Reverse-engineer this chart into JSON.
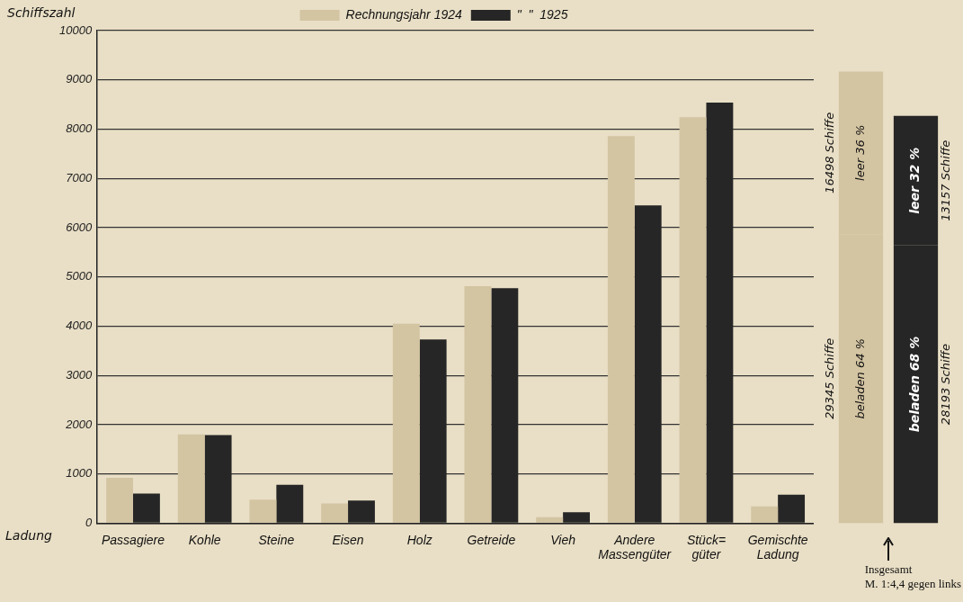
{
  "chart_data": [
    {
      "type": "bar",
      "ylabel": "Schiffszahl",
      "xlabel": "Ladung",
      "categories": [
        "Passagiere",
        "Kohle",
        "Steine",
        "Eisen",
        "Holz",
        "Getreide",
        "Vieh",
        "Andere Massengüter",
        "Stück= güter",
        "Gemischte Ladung"
      ],
      "series": [
        {
          "name": "Rechnungsjahr 1924",
          "color": "#d3c4a2",
          "values": [
            920,
            1800,
            480,
            400,
            4050,
            4810,
            120,
            7860,
            8240,
            340
          ]
        },
        {
          "name": "\"  \"  1925",
          "color": "#262626",
          "values": [
            600,
            1790,
            780,
            460,
            3730,
            4770,
            220,
            6450,
            8540,
            580
          ]
        }
      ],
      "ylim": [
        0,
        10000
      ],
      "yticks": [
        0,
        1000,
        2000,
        3000,
        4000,
        5000,
        6000,
        7000,
        8000,
        9000,
        10000
      ],
      "grid": "y",
      "legend": "top"
    },
    {
      "type": "bar",
      "stacked": true,
      "categories": [
        null,
        null
      ],
      "tick_labels": false,
      "series": [
        {
          "colors": [
            "#d3c4a2",
            "#262626"
          ],
          "values": [
            29345,
            28193
          ],
          "value_labels": [
            "29345 Schiffe",
            "28193 Schiffe"
          ]
        },
        {
          "colors": [
            "#d3c4a2",
            "#262626"
          ],
          "values": [
            16498,
            13157
          ],
          "value_labels": [
            "16498 Schiffe",
            "13157 Schiffe"
          ]
        }
      ],
      "annotations": [
        "beladen 64 %",
        "beladen 68 %",
        "leer 36 %",
        "leer 32 %",
        "Insgesamt",
        "M. 1:4,4 gegen links"
      ]
    }
  ]
}
